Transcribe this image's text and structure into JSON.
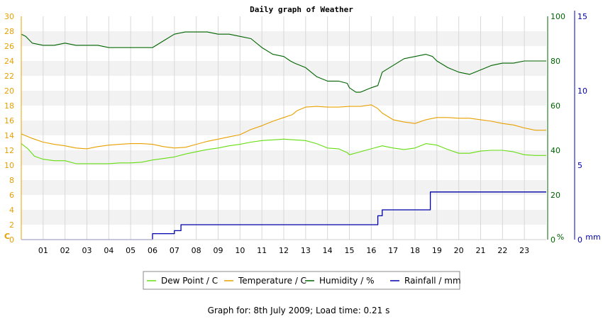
{
  "chart_data": {
    "type": "line",
    "title": "Daily graph of Weather",
    "footer": "Graph for: 8th July 2009; Load time: 0.21 s",
    "x_ticks": [
      "01",
      "02",
      "03",
      "04",
      "05",
      "06",
      "07",
      "08",
      "09",
      "10",
      "11",
      "12",
      "13",
      "14",
      "15",
      "16",
      "17",
      "18",
      "19",
      "20",
      "21",
      "22",
      "23"
    ],
    "x_range": [
      0,
      24
    ],
    "axes": {
      "left": {
        "unit": "C",
        "range": [
          0,
          30
        ],
        "ticks": [
          0,
          2,
          4,
          6,
          8,
          10,
          12,
          14,
          16,
          18,
          20,
          22,
          24,
          26,
          28,
          30
        ],
        "color": "#e8a000"
      },
      "hum": {
        "unit": "%",
        "range": [
          0,
          100
        ],
        "ticks": [
          0,
          20,
          40,
          60,
          80,
          100
        ],
        "color": "#006400"
      },
      "rain": {
        "unit": "mm",
        "range": [
          0,
          15
        ],
        "ticks": [
          0,
          5,
          10,
          15
        ],
        "color": "#0000aa"
      }
    },
    "grid": true,
    "legend_position": "bottom",
    "series": [
      {
        "name": "Dew Point / C",
        "axis": "left",
        "color": "#66dd11",
        "x": [
          0,
          0.3,
          0.6,
          1.0,
          1.5,
          2.0,
          2.5,
          3.0,
          3.5,
          4.0,
          4.5,
          5.0,
          5.5,
          6.0,
          6.5,
          7.0,
          7.5,
          8.0,
          8.5,
          9.0,
          9.5,
          10.0,
          10.5,
          11.0,
          11.5,
          12.0,
          12.5,
          13.0,
          13.5,
          14.0,
          14.5,
          14.9,
          15.0,
          15.5,
          16.0,
          16.5,
          17.0,
          17.5,
          18.0,
          18.5,
          19.0,
          19.5,
          20.0,
          20.5,
          21.0,
          21.5,
          22.0,
          22.5,
          23.0,
          23.5,
          24.0
        ],
        "values": [
          12.9,
          12.2,
          11.2,
          10.8,
          10.6,
          10.6,
          10.2,
          10.2,
          10.2,
          10.2,
          10.3,
          10.3,
          10.4,
          10.7,
          10.9,
          11.1,
          11.5,
          11.8,
          12.1,
          12.3,
          12.6,
          12.8,
          13.1,
          13.3,
          13.4,
          13.5,
          13.4,
          13.3,
          12.9,
          12.3,
          12.2,
          11.7,
          11.4,
          11.8,
          12.2,
          12.6,
          12.3,
          12.1,
          12.3,
          12.9,
          12.7,
          12.1,
          11.6,
          11.6,
          11.9,
          12.0,
          12.0,
          11.8,
          11.4,
          11.3,
          11.3
        ]
      },
      {
        "name": "Temperature / C",
        "axis": "left",
        "color": "#e8a000",
        "x": [
          0,
          0.5,
          1.0,
          1.5,
          2.0,
          2.5,
          3.0,
          3.5,
          4.0,
          4.5,
          5.0,
          5.5,
          6.0,
          6.5,
          7.0,
          7.5,
          8.0,
          8.5,
          9.0,
          9.5,
          10.0,
          10.5,
          11.0,
          11.5,
          12.0,
          12.4,
          12.6,
          13.0,
          13.5,
          14.0,
          14.5,
          15.0,
          15.5,
          16.0,
          16.3,
          16.5,
          17.0,
          17.5,
          18.0,
          18.5,
          19.0,
          19.5,
          20.0,
          20.5,
          21.0,
          21.5,
          22.0,
          22.5,
          23.0,
          23.5,
          24.0
        ],
        "values": [
          14.2,
          13.6,
          13.1,
          12.8,
          12.6,
          12.3,
          12.2,
          12.5,
          12.7,
          12.8,
          12.9,
          12.9,
          12.8,
          12.5,
          12.3,
          12.4,
          12.8,
          13.2,
          13.5,
          13.8,
          14.1,
          14.8,
          15.3,
          15.9,
          16.4,
          16.8,
          17.3,
          17.8,
          17.9,
          17.8,
          17.8,
          17.9,
          17.9,
          18.1,
          17.6,
          17.0,
          16.1,
          15.8,
          15.6,
          16.1,
          16.4,
          16.4,
          16.3,
          16.3,
          16.1,
          15.9,
          15.6,
          15.4,
          15.0,
          14.7,
          14.7
        ]
      },
      {
        "name": "Humidity / %",
        "axis": "hum",
        "color": "#006400",
        "x": [
          0,
          0.2,
          0.5,
          1.0,
          1.5,
          2.0,
          2.5,
          3.0,
          3.5,
          4.0,
          4.5,
          5.0,
          5.5,
          6.0,
          6.5,
          7.0,
          7.5,
          8.0,
          8.5,
          9.0,
          9.5,
          10.0,
          10.5,
          11.0,
          11.5,
          12.0,
          12.3,
          12.5,
          13.0,
          13.5,
          14.0,
          14.5,
          14.9,
          15.0,
          15.3,
          15.5,
          16.0,
          16.3,
          16.5,
          17.0,
          17.5,
          18.0,
          18.5,
          18.8,
          19.0,
          19.5,
          20.0,
          20.5,
          21.0,
          21.5,
          22.0,
          22.5,
          23.0,
          23.5,
          24.0
        ],
        "values": [
          92,
          91,
          88,
          87,
          87,
          88,
          87,
          87,
          87,
          86,
          86,
          86,
          86,
          86,
          89,
          92,
          93,
          93,
          93,
          92,
          92,
          91,
          90,
          86,
          83,
          82,
          80,
          79,
          77,
          73,
          71,
          71,
          70,
          68,
          66,
          66,
          68,
          69,
          75,
          78,
          81,
          82,
          83,
          82,
          80,
          77,
          75,
          74,
          76,
          78,
          79,
          79,
          80,
          80,
          80
        ]
      },
      {
        "name": "Rainfall / mm",
        "axis": "rain",
        "color": "#0000aa",
        "step": true,
        "x": [
          0,
          5.9,
          6.0,
          6.9,
          7.0,
          7.2,
          7.3,
          16.2,
          16.3,
          16.4,
          16.5,
          18.6,
          18.7,
          24.0
        ],
        "values": [
          0,
          0,
          0.4,
          0.4,
          0.6,
          0.6,
          1.0,
          1.0,
          1.6,
          1.6,
          2.0,
          2.0,
          3.2,
          3.2
        ]
      }
    ]
  },
  "labels": {
    "left_unit": "C",
    "hum_unit": "%",
    "rain_unit": "mm"
  },
  "colors": {
    "band": "#f2f2f2",
    "grid": "#d8d8d8"
  }
}
